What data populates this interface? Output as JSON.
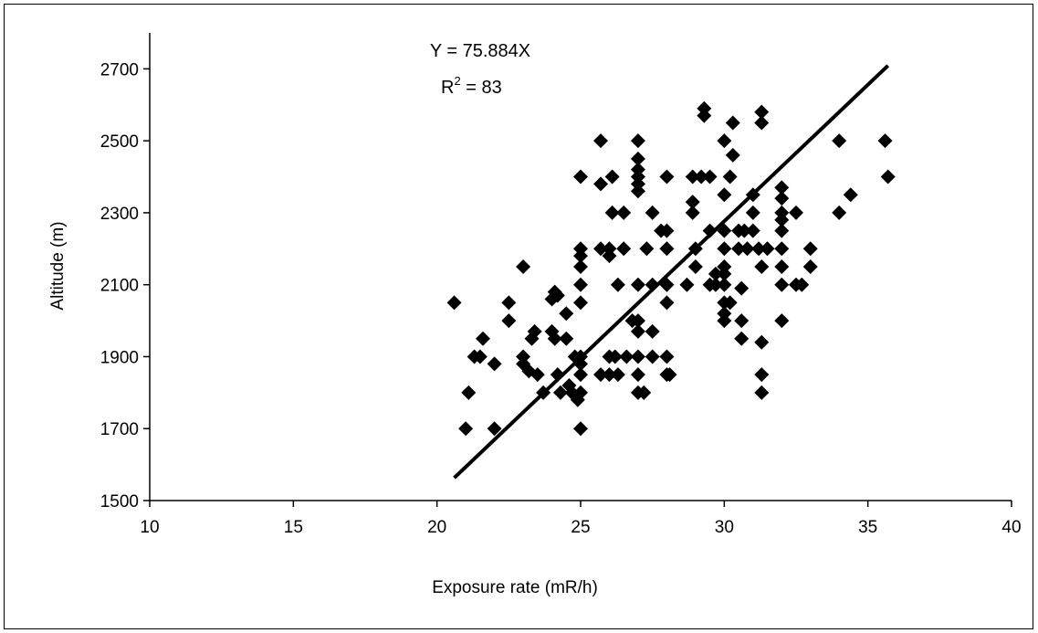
{
  "chart_data": {
    "type": "scatter",
    "xlabel": "Exposure rate (mR/h)",
    "ylabel": "Altitude (m)",
    "xlim": [
      10,
      40
    ],
    "ylim": [
      1500,
      2800
    ],
    "xticks": [
      10,
      15,
      20,
      25,
      30,
      35,
      40
    ],
    "yticks": [
      1500,
      1700,
      1900,
      2100,
      2300,
      2500,
      2700
    ],
    "grid": false,
    "marker": "diamond",
    "marker_color": "#000000",
    "annotations": {
      "equation": "Y = 75.884X",
      "r2_prefix": "R",
      "r2_superscript": "2",
      "r2_suffix": " = 83"
    },
    "trendline": {
      "x": [
        20.6,
        35.7
      ],
      "y": [
        1563,
        2709
      ]
    },
    "points": [
      [
        20.6,
        2050
      ],
      [
        21.0,
        1700
      ],
      [
        21.1,
        1800
      ],
      [
        21.3,
        1900
      ],
      [
        21.5,
        1900
      ],
      [
        21.6,
        1950
      ],
      [
        22.0,
        1880
      ],
      [
        22.0,
        1700
      ],
      [
        22.5,
        2050
      ],
      [
        22.5,
        2000
      ],
      [
        23.0,
        2150
      ],
      [
        23.0,
        1900
      ],
      [
        23.0,
        1880
      ],
      [
        23.2,
        1860
      ],
      [
        23.3,
        1950
      ],
      [
        23.4,
        1970
      ],
      [
        23.5,
        1850
      ],
      [
        23.7,
        1800
      ],
      [
        24.0,
        1970
      ],
      [
        24.0,
        2060
      ],
      [
        24.1,
        1950
      ],
      [
        24.1,
        2080
      ],
      [
        24.2,
        1850
      ],
      [
        24.2,
        2070
      ],
      [
        24.3,
        1800
      ],
      [
        24.5,
        2020
      ],
      [
        24.5,
        1950
      ],
      [
        24.6,
        1820
      ],
      [
        24.7,
        1800
      ],
      [
        24.8,
        1900
      ],
      [
        24.9,
        1780
      ],
      [
        25.0,
        1700
      ],
      [
        25.0,
        1800
      ],
      [
        25.0,
        1850
      ],
      [
        25.0,
        1880
      ],
      [
        25.0,
        1900
      ],
      [
        25.0,
        2050
      ],
      [
        25.0,
        2100
      ],
      [
        25.0,
        2150
      ],
      [
        25.0,
        2180
      ],
      [
        25.0,
        2200
      ],
      [
        25.0,
        2400
      ],
      [
        25.7,
        1850
      ],
      [
        25.7,
        2200
      ],
      [
        25.7,
        2380
      ],
      [
        25.7,
        2500
      ],
      [
        26.0,
        2200
      ],
      [
        26.0,
        2180
      ],
      [
        26.0,
        1900
      ],
      [
        26.0,
        1850
      ],
      [
        26.1,
        2300
      ],
      [
        26.1,
        2400
      ],
      [
        26.2,
        1900
      ],
      [
        26.3,
        1850
      ],
      [
        26.3,
        2100
      ],
      [
        26.5,
        2200
      ],
      [
        26.5,
        2300
      ],
      [
        26.6,
        1900
      ],
      [
        26.8,
        2000
      ],
      [
        27.0,
        2500
      ],
      [
        27.0,
        2450
      ],
      [
        27.0,
        2420
      ],
      [
        27.0,
        2400
      ],
      [
        27.0,
        2380
      ],
      [
        27.0,
        2360
      ],
      [
        27.0,
        2100
      ],
      [
        27.0,
        2000
      ],
      [
        27.0,
        1970
      ],
      [
        27.0,
        1900
      ],
      [
        27.0,
        1850
      ],
      [
        27.0,
        1800
      ],
      [
        27.2,
        1800
      ],
      [
        27.3,
        2200
      ],
      [
        27.5,
        2300
      ],
      [
        27.5,
        2100
      ],
      [
        27.5,
        1970
      ],
      [
        27.5,
        1900
      ],
      [
        27.8,
        2250
      ],
      [
        28.0,
        2400
      ],
      [
        28.0,
        2250
      ],
      [
        28.0,
        2200
      ],
      [
        28.0,
        2100
      ],
      [
        28.0,
        2050
      ],
      [
        28.0,
        1900
      ],
      [
        28.0,
        1850
      ],
      [
        28.1,
        1850
      ],
      [
        28.7,
        2100
      ],
      [
        28.9,
        2400
      ],
      [
        28.9,
        2330
      ],
      [
        28.9,
        2300
      ],
      [
        29.0,
        2200
      ],
      [
        29.0,
        2150
      ],
      [
        29.2,
        2400
      ],
      [
        29.3,
        2590
      ],
      [
        29.3,
        2570
      ],
      [
        29.5,
        2400
      ],
      [
        29.5,
        2250
      ],
      [
        29.5,
        2100
      ],
      [
        29.7,
        2130
      ],
      [
        29.7,
        2100
      ],
      [
        30.0,
        2500
      ],
      [
        30.0,
        2350
      ],
      [
        30.0,
        2250
      ],
      [
        30.0,
        2200
      ],
      [
        30.0,
        2150
      ],
      [
        30.0,
        2130
      ],
      [
        30.0,
        2100
      ],
      [
        30.0,
        2050
      ],
      [
        30.0,
        2020
      ],
      [
        30.0,
        2000
      ],
      [
        30.2,
        2400
      ],
      [
        30.2,
        2050
      ],
      [
        30.3,
        2550
      ],
      [
        30.3,
        2460
      ],
      [
        30.5,
        2250
      ],
      [
        30.5,
        2200
      ],
      [
        30.6,
        2090
      ],
      [
        30.6,
        2000
      ],
      [
        30.6,
        1950
      ],
      [
        30.7,
        2250
      ],
      [
        30.8,
        2200
      ],
      [
        31.0,
        2350
      ],
      [
        31.0,
        2300
      ],
      [
        31.0,
        2250
      ],
      [
        31.2,
        2200
      ],
      [
        31.3,
        2580
      ],
      [
        31.3,
        2550
      ],
      [
        31.3,
        2150
      ],
      [
        31.3,
        1940
      ],
      [
        31.3,
        1850
      ],
      [
        31.3,
        1800
      ],
      [
        31.5,
        2200
      ],
      [
        32.0,
        2370
      ],
      [
        32.0,
        2340
      ],
      [
        32.0,
        2300
      ],
      [
        32.0,
        2280
      ],
      [
        32.0,
        2250
      ],
      [
        32.0,
        2200
      ],
      [
        32.0,
        2150
      ],
      [
        32.0,
        2100
      ],
      [
        32.0,
        2000
      ],
      [
        32.5,
        2300
      ],
      [
        32.5,
        2100
      ],
      [
        32.7,
        2100
      ],
      [
        33.0,
        2200
      ],
      [
        33.0,
        2150
      ],
      [
        34.0,
        2500
      ],
      [
        34.0,
        2300
      ],
      [
        34.4,
        2350
      ],
      [
        35.6,
        2500
      ],
      [
        35.7,
        2400
      ]
    ]
  }
}
